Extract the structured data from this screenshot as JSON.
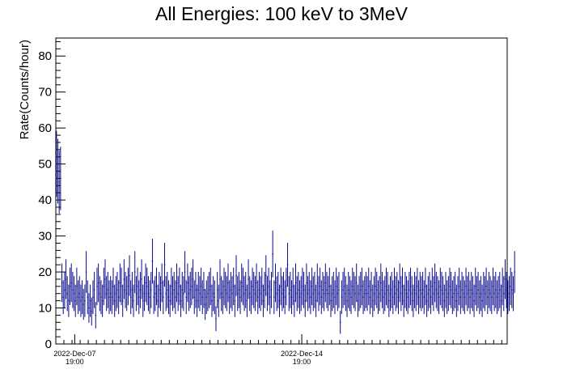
{
  "chart_data": {
    "type": "scatter",
    "title": "All Energies:  100 keV to 3MeV",
    "ylabel": "Rate(Counts/hour)",
    "xlabel": "",
    "ylim": [
      0,
      85
    ],
    "yticks": [
      0,
      10,
      20,
      30,
      40,
      50,
      60,
      70,
      80
    ],
    "xlim": [
      0,
      334
    ],
    "x_unit": "hours",
    "xticks": [
      {
        "x": 14,
        "date": "2022-Dec-07",
        "time": "19:00"
      },
      {
        "x": 182,
        "date": "2022-Dec-14",
        "time": "19:00"
      }
    ],
    "grid": false,
    "error_bars": true,
    "series_color": "#0a0a8c",
    "series": [
      {
        "name": "",
        "x_start": 0.5,
        "x_step": 1,
        "values": [
          50,
          48,
          45,
          46,
          17,
          13,
          15,
          18,
          14,
          12,
          16,
          17,
          15,
          14,
          12,
          16,
          13,
          14,
          12,
          13,
          11,
          12,
          20,
          13,
          10,
          12,
          9,
          13,
          15,
          8,
          16,
          17,
          14,
          13,
          12,
          16,
          18,
          14,
          15,
          13,
          14,
          13,
          16,
          12,
          14,
          15,
          13,
          17,
          16,
          12,
          18,
          15,
          14,
          16,
          19,
          13,
          15,
          12,
          20,
          14,
          16,
          13,
          15,
          18,
          12,
          14,
          17,
          16,
          14,
          13,
          15,
          23,
          13,
          14,
          16,
          12,
          15,
          14,
          17,
          13,
          22,
          14,
          15,
          13,
          12,
          16,
          14,
          15,
          13,
          17,
          14,
          16,
          12,
          15,
          14,
          20,
          13,
          17,
          14,
          15,
          16,
          18,
          13,
          15,
          12,
          15,
          14,
          16,
          13,
          15,
          11,
          13,
          14,
          15,
          16,
          12,
          14,
          13,
          7,
          15,
          12,
          18,
          14,
          13,
          16,
          15,
          14,
          17,
          13,
          15,
          14,
          16,
          12,
          19,
          14,
          15,
          13,
          17,
          16,
          14,
          15,
          12,
          18,
          14,
          13,
          16,
          15,
          14,
          17,
          13,
          15,
          14,
          16,
          12,
          15,
          19,
          14,
          16,
          13,
          15,
          25,
          13,
          17,
          14,
          15,
          12,
          16,
          14,
          15,
          13,
          16,
          22,
          14,
          15,
          13,
          16,
          12,
          17,
          14,
          15,
          13,
          14,
          16,
          15,
          12,
          17,
          14,
          15,
          13,
          16,
          14,
          15,
          12,
          17,
          14,
          16,
          13,
          15,
          14,
          17,
          15,
          14,
          16,
          12,
          14,
          15,
          13,
          16,
          14,
          15,
          6,
          13,
          15,
          16,
          14,
          12,
          15,
          14,
          13,
          16,
          15,
          14,
          17,
          12,
          14,
          15,
          16,
          13,
          14,
          15,
          14,
          16,
          13,
          15,
          12,
          14,
          16,
          15,
          13,
          14,
          17,
          15,
          13,
          14,
          16,
          15,
          12,
          14,
          15,
          13,
          16,
          14,
          15,
          13,
          17,
          14,
          16,
          12,
          15,
          14,
          13,
          15,
          16,
          14,
          12,
          15,
          14,
          16,
          13,
          15,
          14,
          15,
          13,
          16,
          12,
          14,
          15,
          13,
          16,
          14,
          17,
          15,
          14,
          13,
          16,
          15,
          14,
          12,
          15,
          13,
          14,
          16,
          15,
          13,
          14,
          15,
          12,
          14,
          16,
          13,
          15,
          14,
          13,
          16,
          14,
          15,
          13,
          15,
          14,
          12,
          16,
          14,
          15,
          13,
          14,
          12,
          15,
          14,
          16,
          13,
          15,
          14,
          13,
          16,
          14,
          15,
          13,
          14,
          15,
          12,
          16,
          14,
          18,
          15,
          13,
          14,
          16,
          15,
          14,
          20
        ]
      }
    ]
  }
}
